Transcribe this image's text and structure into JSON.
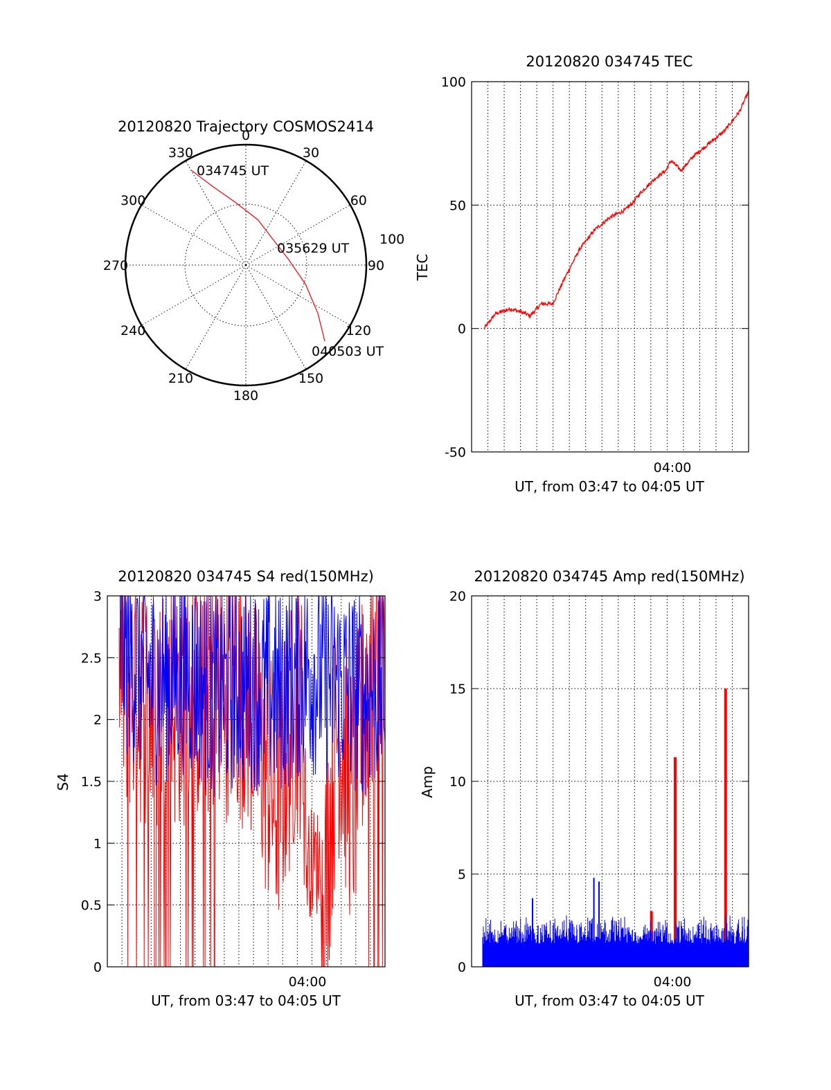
{
  "colors": {
    "red": "#ff0000",
    "blue": "#0000ff",
    "black": "#000000",
    "background": "#ffffff"
  },
  "chart_data": [
    {
      "type": "polar",
      "title": "20120820 Trajectory COSMOS2414",
      "azimuth_labels": [
        "0",
        "30",
        "60",
        "90",
        "120",
        "150",
        "180",
        "210",
        "240",
        "270",
        "300",
        "330"
      ],
      "radius_label": "100",
      "elevation_rings": [
        0,
        50
      ],
      "annotations": {
        "start": "034745 UT",
        "mid": "035629 UT",
        "end": "040503 UT"
      },
      "series": [
        {
          "color": "red",
          "points": [
            {
              "az": 330,
              "zen": 82
            },
            {
              "az": 337,
              "zen": 64
            },
            {
              "az": 350,
              "zen": 48
            },
            {
              "az": 15,
              "zen": 35
            },
            {
              "az": 45,
              "zen": 28
            },
            {
              "az": 82,
              "zen": 32
            },
            {
              "az": 108,
              "zen": 47
            },
            {
              "az": 124,
              "zen": 65
            },
            {
              "az": 134,
              "zen": 82
            }
          ]
        }
      ]
    },
    {
      "type": "line",
      "title": "20120820 034745 TEC",
      "ylabel": "TEC",
      "xlabel": "UT, from 03:47 to 04:05 UT",
      "xtick_labels": [
        "04:00"
      ],
      "ylim": [
        -50,
        100
      ],
      "ytick_labels": [
        "-50",
        "0",
        "50",
        "100"
      ],
      "grid": true,
      "series": [
        {
          "color": "red",
          "x": [
            "03:47:45",
            "03:48:30",
            "03:49:30",
            "03:50:30",
            "03:50:45",
            "03:51:30",
            "03:52:15",
            "03:53:00",
            "03:54:00",
            "03:55:00",
            "03:56:00",
            "03:57:00",
            "03:57:30",
            "03:58:00",
            "03:59:00",
            "03:59:40",
            "04:00:00",
            "04:00:40",
            "04:01:30",
            "04:02:30",
            "04:03:30",
            "04:04:30",
            "04:05:05"
          ],
          "y": [
            0,
            6,
            8,
            6,
            5,
            10,
            10,
            20,
            32,
            40,
            45,
            48,
            51,
            55,
            61,
            64,
            68,
            64,
            70,
            75,
            80,
            88,
            96
          ]
        }
      ]
    },
    {
      "type": "line",
      "title": "20120820 034745 S4 red(150MHz)",
      "ylabel": "S4",
      "xlabel": "UT, from 03:47 to 04:05 UT",
      "xtick_labels": [
        "04:00"
      ],
      "ylim": [
        0,
        3
      ],
      "ytick_labels": [
        "0",
        "0.5",
        "1",
        "1.5",
        "2",
        "2.5",
        "3"
      ],
      "grid": true,
      "series": [
        {
          "color": "red",
          "note": "dense noisy trace, frequent drops to 0 before 03:55, dips to ~0.4 near 04:01",
          "x": [
            "03:47:45",
            "03:50:00",
            "03:52:00",
            "03:54:00",
            "03:56:00",
            "03:58:00",
            "03:59:30",
            "04:00:30",
            "04:01:00",
            "04:02:00",
            "04:03:00",
            "04:04:00",
            "04:05:05"
          ],
          "y": [
            2.4,
            2.1,
            2.2,
            2.3,
            2.2,
            1.3,
            2.2,
            0.5,
            0.4,
            2.0,
            1.3,
            2.4,
            2.5
          ]
        },
        {
          "color": "blue",
          "note": "dense noisy trace mostly between 1.5 and 3",
          "x": [
            "03:47:45",
            "03:50:00",
            "03:52:00",
            "03:54:00",
            "03:56:00",
            "03:58:00",
            "04:00:00",
            "04:02:00",
            "04:04:00",
            "04:05:05"
          ],
          "y": [
            2.6,
            2.3,
            2.4,
            2.2,
            2.3,
            2.2,
            2.4,
            2.3,
            2.2,
            2.3
          ]
        }
      ]
    },
    {
      "type": "line",
      "title": "20120820 034745 Amp red(150MHz)",
      "ylabel": "Amp",
      "xlabel": "UT, from 03:47 to 04:05 UT",
      "xtick_labels": [
        "04:00"
      ],
      "ylim": [
        0,
        20
      ],
      "ytick_labels": [
        "0",
        "5",
        "10",
        "15",
        "20"
      ],
      "grid": true,
      "series": [
        {
          "color": "red",
          "note": "mostly hidden behind blue; spikes",
          "spikes": [
            {
              "x": "03:58:45",
              "y": 3.0
            },
            {
              "x": "04:00:18",
              "y": 11.3
            },
            {
              "x": "04:03:35",
              "y": 15.0
            }
          ]
        },
        {
          "color": "blue",
          "note": "dense noise baseline ~1.2, max ~3",
          "spikes": [
            {
              "x": "03:55:00",
              "y": 4.8
            },
            {
              "x": "03:55:20",
              "y": 4.6
            },
            {
              "x": "03:51:00",
              "y": 3.7
            }
          ]
        }
      ]
    }
  ]
}
